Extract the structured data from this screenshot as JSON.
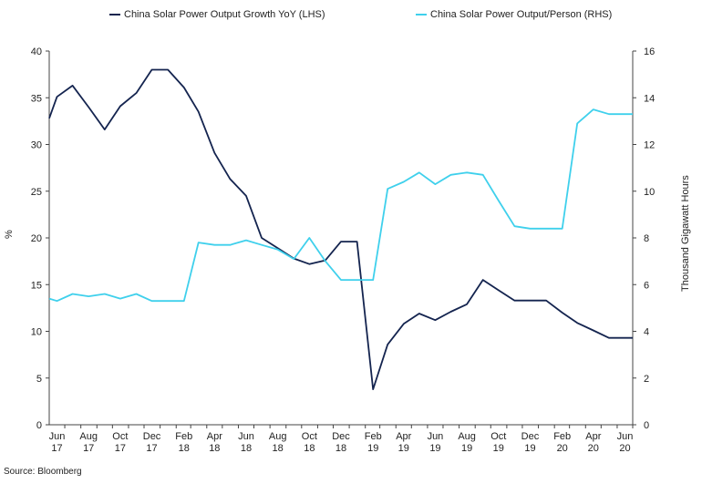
{
  "chart_data": {
    "type": "line",
    "legend": [
      {
        "name": "China Solar Power Output Growth YoY (LHS)",
        "color": "#14244f"
      },
      {
        "name": "China Solar Power Output/Person (RHS)",
        "color": "#3fd0ec"
      }
    ],
    "x_tick_labels": [
      [
        "Jun",
        "17"
      ],
      [
        "Aug",
        "17"
      ],
      [
        "Oct",
        "17"
      ],
      [
        "Dec",
        "17"
      ],
      [
        "Feb",
        "18"
      ],
      [
        "Apr",
        "18"
      ],
      [
        "Jun",
        "18"
      ],
      [
        "Aug",
        "18"
      ],
      [
        "Oct",
        "18"
      ],
      [
        "Dec",
        "18"
      ],
      [
        "Feb",
        "19"
      ],
      [
        "Apr",
        "19"
      ],
      [
        "Jun",
        "19"
      ],
      [
        "Aug",
        "19"
      ],
      [
        "Oct",
        "19"
      ],
      [
        "Dec",
        "19"
      ],
      [
        "Feb",
        "20"
      ],
      [
        "Apr",
        "20"
      ],
      [
        "Jun",
        "20"
      ]
    ],
    "x": [
      "2017-05-31",
      "2017-06-15",
      "2017-07-15",
      "2017-08-15",
      "2017-09-15",
      "2017-10-15",
      "2017-11-15",
      "2017-12-15",
      "2018-01-15",
      "2018-02-15",
      "2018-03-15",
      "2018-04-15",
      "2018-05-15",
      "2018-06-15",
      "2018-07-15",
      "2018-08-15",
      "2018-09-15",
      "2018-10-15",
      "2018-11-15",
      "2018-12-15",
      "2019-01-15",
      "2019-02-15",
      "2019-03-15",
      "2019-04-15",
      "2019-05-15",
      "2019-06-15",
      "2019-07-15",
      "2019-08-15",
      "2019-09-15",
      "2019-10-15",
      "2019-11-15",
      "2019-12-15",
      "2020-01-15",
      "2020-02-15",
      "2020-03-15",
      "2020-04-15",
      "2020-05-15",
      "2020-06-15",
      "2020-06-30"
    ],
    "series": [
      {
        "name": "China Solar Power Output Growth YoY (LHS)",
        "axis": "left",
        "color": "#14244f",
        "values": [
          32.8,
          35.1,
          36.3,
          34.0,
          31.6,
          34.1,
          35.5,
          38.0,
          38.0,
          36.1,
          33.5,
          29.1,
          26.3,
          24.5,
          20.0,
          18.9,
          17.8,
          17.2,
          17.6,
          19.6,
          19.6,
          3.8,
          8.6,
          10.8,
          11.9,
          11.2,
          12.1,
          12.9,
          15.5,
          14.4,
          13.3,
          13.3,
          13.3,
          12.0,
          10.9,
          10.1,
          9.3,
          9.3,
          9.3
        ]
      },
      {
        "name": "China Solar Power Output/Person (RHS)",
        "axis": "right",
        "color": "#3fd0ec",
        "values": [
          5.4,
          5.3,
          5.6,
          5.5,
          5.6,
          5.4,
          5.6,
          5.3,
          5.3,
          5.3,
          7.8,
          7.7,
          7.7,
          7.9,
          7.7,
          7.5,
          7.1,
          8.0,
          7.0,
          6.2,
          6.2,
          6.2,
          10.1,
          10.4,
          10.8,
          10.3,
          10.7,
          10.8,
          10.7,
          9.6,
          8.5,
          8.4,
          8.4,
          8.4,
          12.9,
          13.5,
          13.3,
          13.3,
          13.3
        ]
      }
    ],
    "y_left": {
      "label": "%",
      "min": 0,
      "max": 40,
      "step": 5
    },
    "y_right": {
      "label": "Thousand Gigawatt Hours",
      "min": 0,
      "max": 16,
      "step": 2
    },
    "x_range": [
      "2017-05-31",
      "2020-06-30"
    ],
    "grid": false
  },
  "source": "Source: Bloomberg"
}
